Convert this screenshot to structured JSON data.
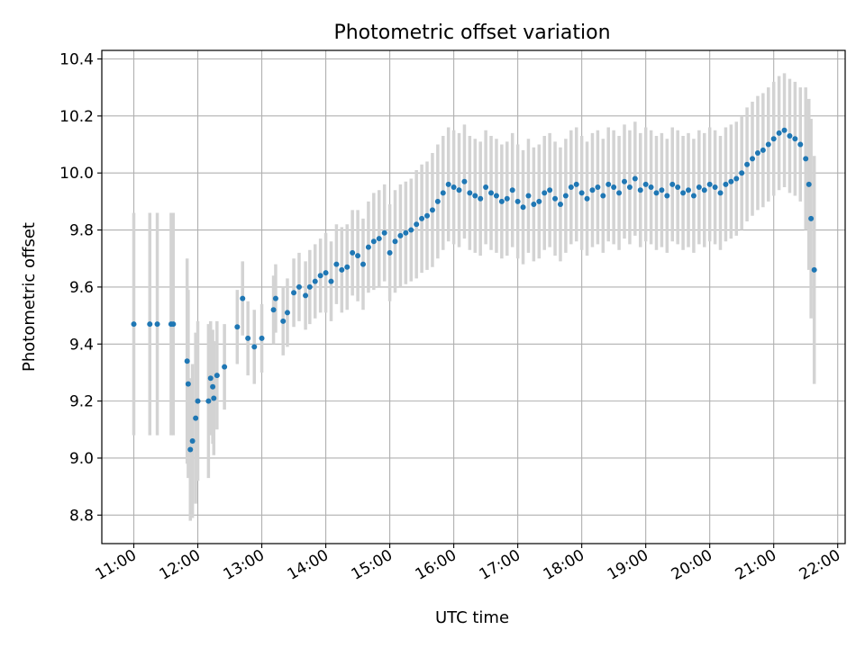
{
  "chart_data": {
    "type": "scatter",
    "title": "Photometric offset variation",
    "xlabel": "UTC time",
    "ylabel": "Photometric offset",
    "x_ticks": [
      "11:00",
      "12:00",
      "13:00",
      "14:00",
      "15:00",
      "16:00",
      "17:00",
      "18:00",
      "19:00",
      "20:00",
      "21:00",
      "22:00"
    ],
    "y_ticks": [
      "8.8",
      "9.0",
      "9.2",
      "9.4",
      "9.6",
      "9.8",
      "10.0",
      "10.2",
      "10.4"
    ],
    "xlim": [
      "10:30",
      "22:07"
    ],
    "ylim": [
      8.7,
      10.43
    ],
    "grid": true,
    "errorbar_color": "#d3d3d3",
    "point_color": "#1f77b4",
    "series": [
      {
        "x": [
          "11:00",
          "11:15",
          "11:22",
          "11:35",
          "11:37",
          "11:50",
          "11:51",
          "11:53",
          "11:55",
          "11:58",
          "12:00",
          "12:10",
          "12:12",
          "12:14",
          "12:15",
          "12:18",
          "12:25",
          "12:37",
          "12:42",
          "12:47",
          "12:53",
          "13:00",
          "13:11",
          "13:13",
          "13:20",
          "13:24",
          "13:30",
          "13:35",
          "13:41",
          "13:45",
          "13:50",
          "13:55",
          "14:00",
          "14:05",
          "14:10",
          "14:15",
          "14:20",
          "14:25",
          "14:30",
          "14:35",
          "14:40",
          "14:45",
          "14:50",
          "14:55",
          "15:00",
          "15:05",
          "15:10",
          "15:15",
          "15:20",
          "15:25",
          "15:30",
          "15:35",
          "15:40",
          "15:45",
          "15:50",
          "15:55",
          "16:00",
          "16:05",
          "16:10",
          "16:15",
          "16:20",
          "16:25",
          "16:30",
          "16:35",
          "16:40",
          "16:45",
          "16:50",
          "16:55",
          "17:00",
          "17:05",
          "17:10",
          "17:15",
          "17:20",
          "17:25",
          "17:30",
          "17:35",
          "17:40",
          "17:45",
          "17:50",
          "17:55",
          "18:00",
          "18:05",
          "18:10",
          "18:15",
          "18:20",
          "18:25",
          "18:30",
          "18:35",
          "18:40",
          "18:45",
          "18:50",
          "18:55",
          "19:00",
          "19:05",
          "19:10",
          "19:15",
          "19:20",
          "19:25",
          "19:30",
          "19:35",
          "19:40",
          "19:45",
          "19:50",
          "19:55",
          "20:00",
          "20:05",
          "20:10",
          "20:15",
          "20:20",
          "20:25",
          "20:30",
          "20:35",
          "20:40",
          "20:45",
          "20:50",
          "20:55",
          "21:00",
          "21:05",
          "21:10",
          "21:15",
          "21:20",
          "21:25",
          "21:30",
          "21:33",
          "21:35",
          "21:38"
        ],
        "y": [
          9.47,
          9.47,
          9.47,
          9.47,
          9.47,
          9.34,
          9.26,
          9.03,
          9.06,
          9.14,
          9.2,
          9.2,
          9.28,
          9.25,
          9.21,
          9.29,
          9.32,
          9.46,
          9.56,
          9.42,
          9.39,
          9.42,
          9.52,
          9.56,
          9.48,
          9.51,
          9.58,
          9.6,
          9.57,
          9.6,
          9.62,
          9.64,
          9.65,
          9.62,
          9.68,
          9.66,
          9.67,
          9.72,
          9.71,
          9.68,
          9.74,
          9.76,
          9.77,
          9.79,
          9.72,
          9.76,
          9.78,
          9.79,
          9.8,
          9.82,
          9.84,
          9.85,
          9.87,
          9.9,
          9.93,
          9.96,
          9.95,
          9.94,
          9.97,
          9.93,
          9.92,
          9.91,
          9.95,
          9.93,
          9.92,
          9.9,
          9.91,
          9.94,
          9.9,
          9.88,
          9.92,
          9.89,
          9.9,
          9.93,
          9.94,
          9.91,
          9.89,
          9.92,
          9.95,
          9.96,
          9.93,
          9.91,
          9.94,
          9.95,
          9.92,
          9.96,
          9.95,
          9.93,
          9.97,
          9.95,
          9.98,
          9.94,
          9.96,
          9.95,
          9.93,
          9.94,
          9.92,
          9.96,
          9.95,
          9.93,
          9.94,
          9.92,
          9.95,
          9.94,
          9.96,
          9.95,
          9.93,
          9.96,
          9.97,
          9.98,
          10.0,
          10.03,
          10.05,
          10.07,
          10.08,
          10.1,
          10.12,
          10.14,
          10.15,
          10.13,
          10.12,
          10.1,
          10.05,
          9.96,
          9.84,
          9.66
        ],
        "yerr": [
          0.39,
          0.39,
          0.39,
          0.39,
          0.39,
          0.36,
          0.33,
          0.25,
          0.27,
          0.3,
          0.28,
          0.27,
          0.2,
          0.2,
          0.2,
          0.19,
          0.15,
          0.13,
          0.13,
          0.13,
          0.13,
          0.12,
          0.12,
          0.12,
          0.12,
          0.12,
          0.12,
          0.12,
          0.12,
          0.13,
          0.13,
          0.13,
          0.14,
          0.14,
          0.14,
          0.15,
          0.15,
          0.15,
          0.16,
          0.16,
          0.16,
          0.17,
          0.17,
          0.17,
          0.17,
          0.18,
          0.18,
          0.18,
          0.18,
          0.19,
          0.19,
          0.19,
          0.2,
          0.2,
          0.2,
          0.2,
          0.2,
          0.2,
          0.2,
          0.2,
          0.2,
          0.2,
          0.2,
          0.2,
          0.2,
          0.2,
          0.2,
          0.2,
          0.2,
          0.2,
          0.2,
          0.2,
          0.2,
          0.2,
          0.2,
          0.2,
          0.2,
          0.2,
          0.2,
          0.2,
          0.2,
          0.2,
          0.2,
          0.2,
          0.2,
          0.2,
          0.2,
          0.2,
          0.2,
          0.2,
          0.2,
          0.2,
          0.2,
          0.2,
          0.2,
          0.2,
          0.2,
          0.2,
          0.2,
          0.2,
          0.2,
          0.2,
          0.2,
          0.2,
          0.2,
          0.2,
          0.2,
          0.2,
          0.2,
          0.2,
          0.2,
          0.2,
          0.2,
          0.2,
          0.2,
          0.2,
          0.2,
          0.2,
          0.2,
          0.2,
          0.2,
          0.2,
          0.25,
          0.3,
          0.35,
          0.4
        ]
      }
    ]
  }
}
